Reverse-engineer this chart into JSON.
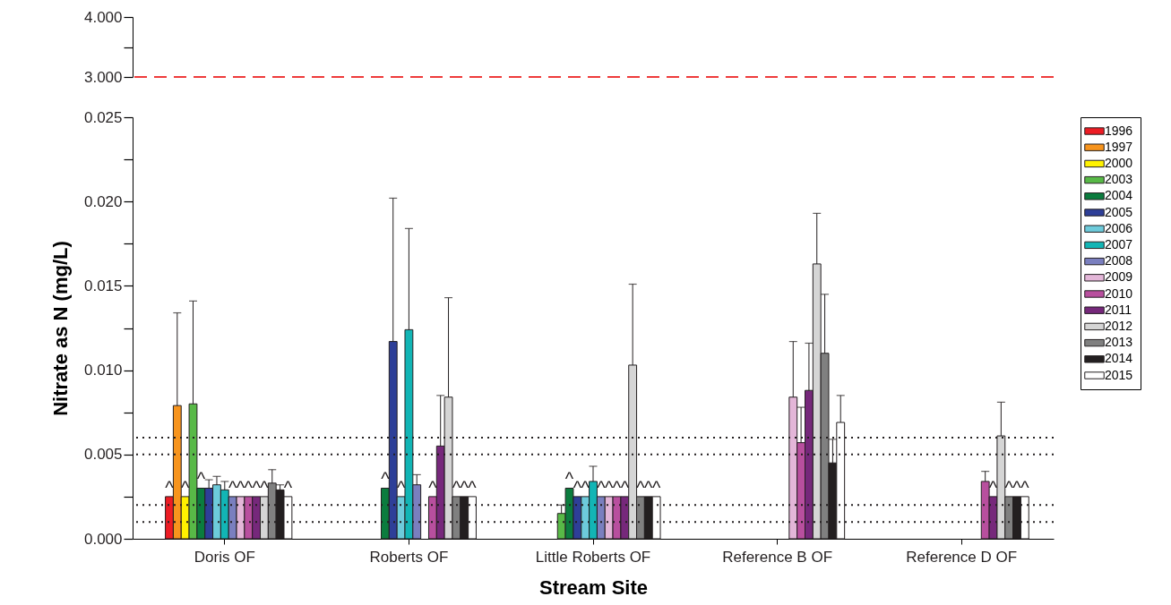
{
  "chart_data": [
    {
      "type": "bar",
      "categories": [
        null,
        null,
        null,
        null,
        null
      ],
      "values": [
        null,
        null,
        null,
        null,
        null
      ],
      "ylim": [
        3,
        4
      ],
      "yticks": [
        {
          "value": 3,
          "label": "3.000"
        },
        {
          "value": 3.5,
          "label": null
        },
        {
          "value": 4,
          "label": "4.000"
        }
      ],
      "tick_labels": "y",
      "ref_lines": [
        {
          "axis": "y",
          "value": 3,
          "color": "#ee3b3b",
          "line_style": "dashed"
        }
      ]
    },
    {
      "type": "bar",
      "xlabel": "Stream Site",
      "ylabel": "Nitrate as N (mg/L)",
      "categories": [
        "Doris OF",
        "Roberts OF",
        "Little Roberts OF",
        "Reference B OF",
        "Reference D OF"
      ],
      "ylim": [
        0,
        0.025
      ],
      "yticks": [
        {
          "value": 0,
          "label": "0.000"
        },
        {
          "value": 0.0025,
          "label": null
        },
        {
          "value": 0.005,
          "label": "0.005"
        },
        {
          "value": 0.0075,
          "label": null
        },
        {
          "value": 0.01,
          "label": "0.010"
        },
        {
          "value": 0.0125,
          "label": null
        },
        {
          "value": 0.015,
          "label": "0.015"
        },
        {
          "value": 0.0175,
          "label": null
        },
        {
          "value": 0.02,
          "label": "0.020"
        },
        {
          "value": 0.0225,
          "label": null
        },
        {
          "value": 0.025,
          "label": "0.025"
        }
      ],
      "legend": "right",
      "ref_lines": [
        {
          "axis": "y",
          "value": 0.001,
          "color": "#231f20",
          "line_style": "dotted"
        },
        {
          "axis": "y",
          "value": 0.002,
          "color": "#231f20",
          "line_style": "dotted"
        },
        {
          "axis": "y",
          "value": 0.005,
          "color": "#231f20",
          "line_style": "dotted"
        },
        {
          "axis": "y",
          "value": 0.006,
          "color": "#231f20",
          "line_style": "dotted"
        }
      ],
      "series": [
        {
          "name": "1996",
          "color": "#ed1c24",
          "values": [
            0.0025,
            null,
            null,
            null,
            null
          ],
          "value_labels": [
            "^",
            null,
            null,
            null,
            null
          ]
        },
        {
          "name": "1997",
          "color": "#f7941d",
          "values": [
            0.0079,
            null,
            null,
            null,
            null
          ],
          "errors": [
            0.0055,
            null,
            null,
            null,
            null
          ]
        },
        {
          "name": "2000",
          "color": "#fff200",
          "values": [
            0.0025,
            null,
            null,
            null,
            null
          ],
          "value_labels": [
            "^",
            null,
            null,
            null,
            null
          ]
        },
        {
          "name": "2003",
          "color": "#58b947",
          "values": [
            0.008,
            null,
            0.0015,
            null,
            null
          ],
          "errors": [
            0.0061,
            null,
            0.0005,
            null,
            null
          ]
        },
        {
          "name": "2004",
          "color": "#0b7c3e",
          "values": [
            0.003,
            0.003,
            0.003,
            null,
            null
          ],
          "value_labels": [
            "^",
            "^",
            "^",
            null,
            null
          ]
        },
        {
          "name": "2005",
          "color": "#2e3f98",
          "values": [
            0.003,
            0.0117,
            0.0025,
            null,
            null
          ],
          "errors": [
            0.0005,
            0.0085,
            null,
            null,
            null
          ],
          "value_labels": [
            null,
            null,
            "^",
            null,
            null
          ]
        },
        {
          "name": "2006",
          "color": "#6dcbdb",
          "values": [
            0.0032,
            0.0025,
            0.0025,
            null,
            null
          ],
          "errors": [
            0.0005,
            null,
            null,
            null,
            null
          ],
          "value_labels": [
            null,
            "^",
            "^",
            null,
            null
          ]
        },
        {
          "name": "2007",
          "color": "#12b5b5",
          "values": [
            0.0029,
            0.0124,
            0.0034,
            null,
            null
          ],
          "errors": [
            0.0005,
            0.006,
            0.0009,
            null,
            null
          ]
        },
        {
          "name": "2008",
          "color": "#7a7fbf",
          "values": [
            0.0025,
            0.0032,
            0.0025,
            null,
            null
          ],
          "errors": [
            null,
            0.0006,
            null,
            null,
            null
          ],
          "value_labels": [
            "^",
            null,
            "^",
            null,
            null
          ]
        },
        {
          "name": "2009",
          "color": "#e3b6d8",
          "values": [
            0.0025,
            null,
            0.0025,
            0.0084,
            null
          ],
          "errors": [
            null,
            null,
            null,
            0.0033,
            null
          ],
          "value_labels": [
            "^",
            null,
            "^",
            null,
            null
          ]
        },
        {
          "name": "2010",
          "color": "#b84f9e",
          "values": [
            0.0025,
            0.0025,
            0.0025,
            0.0057,
            0.0034
          ],
          "errors": [
            null,
            null,
            null,
            0.0021,
            0.0006
          ],
          "value_labels": [
            "^",
            "^",
            "^",
            null,
            null
          ]
        },
        {
          "name": "2011",
          "color": "#76287b",
          "values": [
            0.0025,
            0.0055,
            0.0025,
            0.0088,
            0.0025
          ],
          "errors": [
            null,
            0.003,
            null,
            0.0028,
            null
          ],
          "value_labels": [
            "^",
            null,
            "^",
            null,
            "^"
          ]
        },
        {
          "name": "2012",
          "color": "#d5d5d5",
          "values": [
            0.0025,
            0.0084,
            0.0103,
            0.0163,
            0.0061
          ],
          "errors": [
            null,
            0.0059,
            0.0048,
            0.003,
            0.002
          ],
          "value_labels": [
            "^",
            null,
            null,
            null,
            null
          ]
        },
        {
          "name": "2013",
          "color": "#808080",
          "values": [
            0.0033,
            0.0025,
            0.0025,
            0.011,
            0.0025
          ],
          "errors": [
            0.0008,
            null,
            null,
            0.0035,
            null
          ],
          "value_labels": [
            null,
            "^",
            "^",
            null,
            "^"
          ]
        },
        {
          "name": "2014",
          "color": "#231f20",
          "values": [
            0.0029,
            0.0025,
            0.0025,
            0.0045,
            0.0025
          ],
          "errors": [
            0.0003,
            null,
            null,
            0.0014,
            null
          ],
          "value_labels": [
            null,
            "^",
            "^",
            null,
            "^"
          ]
        },
        {
          "name": "2015",
          "color": "#ffffff",
          "values": [
            0.0025,
            0.0025,
            0.0025,
            0.0069,
            0.0025
          ],
          "errors": [
            null,
            null,
            null,
            0.0016,
            null
          ],
          "value_labels": [
            "^",
            "^",
            "^",
            null,
            "^"
          ]
        }
      ]
    }
  ]
}
